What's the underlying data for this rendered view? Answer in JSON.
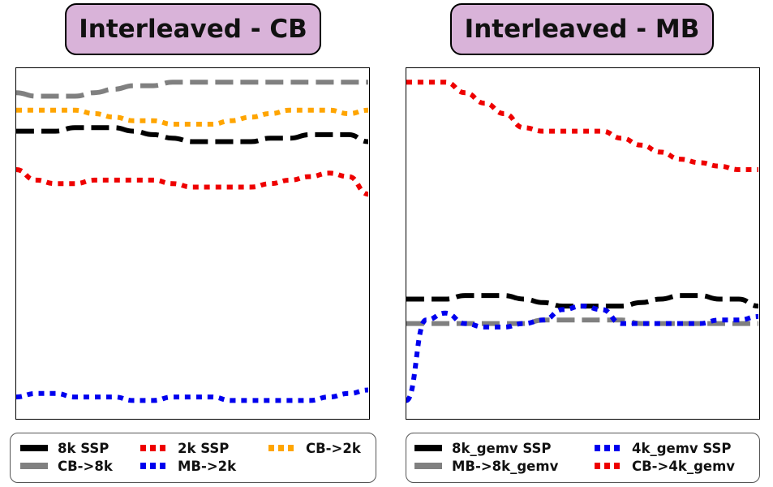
{
  "chart_data": [
    {
      "type": "line",
      "title": "Interleaved - CB",
      "x": [
        0,
        1,
        2,
        3,
        4,
        5,
        6,
        7,
        8,
        9,
        10,
        11,
        12,
        13,
        14,
        15,
        16,
        17,
        18
      ],
      "xlim": [
        0,
        18
      ],
      "ylim": [
        0,
        100
      ],
      "xlabel": "",
      "ylabel": "",
      "grid": false,
      "legend_position": "bottom",
      "series": [
        {
          "name": "8k SSP",
          "color": "#000000",
          "style": "dashed",
          "values": [
            82,
            82,
            82,
            83,
            83,
            83,
            82,
            81,
            80,
            79,
            79,
            79,
            79,
            80,
            80,
            81,
            81,
            81,
            79
          ]
        },
        {
          "name": "2k SSP",
          "color": "#ee0000",
          "style": "dotted",
          "values": [
            71,
            68,
            67,
            67,
            68,
            68,
            68,
            68,
            67,
            66,
            66,
            66,
            66,
            67,
            68,
            69,
            70,
            69,
            64
          ]
        },
        {
          "name": "CB->2k",
          "color": "#ffa500",
          "style": "dotted",
          "values": [
            88,
            88,
            88,
            88,
            87,
            86,
            85,
            85,
            84,
            84,
            84,
            85,
            86,
            87,
            88,
            88,
            88,
            87,
            88
          ]
        },
        {
          "name": "CB->8k",
          "color": "#808080",
          "style": "dashed",
          "values": [
            93,
            92,
            92,
            92,
            93,
            94,
            95,
            95,
            96,
            96,
            96,
            96,
            96,
            96,
            96,
            96,
            96,
            96,
            96
          ]
        },
        {
          "name": "MB->2k",
          "color": "#0000ee",
          "style": "dotted",
          "values": [
            6,
            7,
            7,
            6,
            6,
            6,
            5,
            5,
            6,
            6,
            6,
            5,
            5,
            5,
            5,
            5,
            6,
            7,
            8
          ]
        }
      ]
    },
    {
      "type": "line",
      "title": "Interleaved - MB",
      "x": [
        0,
        1,
        2,
        3,
        4,
        5,
        6,
        7,
        8,
        9,
        10,
        11,
        12,
        13,
        14,
        15,
        16,
        17,
        18
      ],
      "xlim": [
        0,
        18
      ],
      "ylim": [
        0,
        100
      ],
      "xlabel": "",
      "ylabel": "",
      "grid": false,
      "legend_position": "bottom",
      "series": [
        {
          "name": "8k_gemv SSP",
          "color": "#000000",
          "style": "dashed",
          "values": [
            34,
            34,
            34,
            35,
            35,
            35,
            34,
            33,
            32,
            32,
            32,
            32,
            33,
            34,
            35,
            35,
            34,
            34,
            32
          ]
        },
        {
          "name": "MB->8k_gemv",
          "color": "#808080",
          "style": "dashed",
          "values": [
            27,
            27,
            27,
            27,
            27,
            27,
            27,
            28,
            28,
            28,
            28,
            28,
            27,
            27,
            27,
            27,
            27,
            27,
            27
          ]
        },
        {
          "name": "4k_gemv SSP",
          "color": "#0000ee",
          "style": "dotted",
          "values": [
            5,
            28,
            30,
            27,
            26,
            26,
            27,
            28,
            31,
            32,
            31,
            27,
            27,
            27,
            27,
            27,
            28,
            28,
            29
          ]
        },
        {
          "name": "CB->4k_gemv",
          "color": "#ee0000",
          "style": "dotted",
          "values": [
            96,
            96,
            96,
            93,
            90,
            87,
            83,
            82,
            82,
            82,
            82,
            80,
            78,
            76,
            74,
            73,
            72,
            71,
            71
          ]
        }
      ]
    }
  ]
}
